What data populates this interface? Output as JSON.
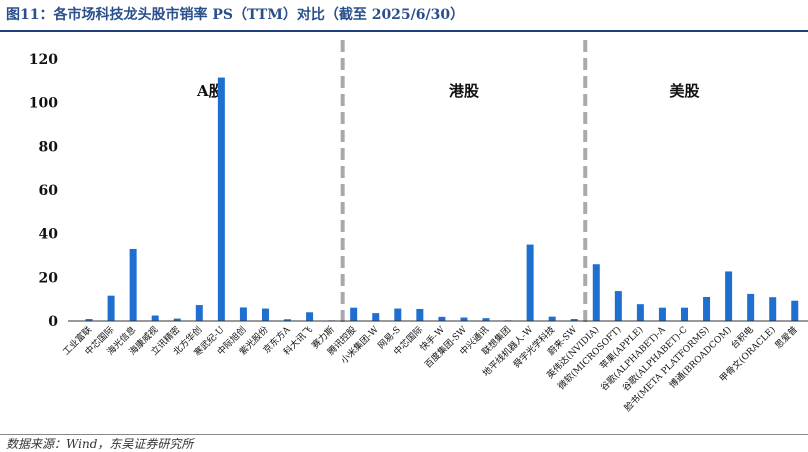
{
  "header": {
    "title": "图11：各市场科技龙头股市销率 PS（TTM）对比（截至 2025/6/30）"
  },
  "footer": {
    "source": "数据来源：Wind，东吴证券研究所"
  },
  "chart_data": {
    "type": "bar",
    "title": "图11：各市场科技龙头股市销率 PS（TTM）对比（截至 2025/6/30）",
    "xlabel": "",
    "ylabel": "",
    "ylim": [
      0,
      120
    ],
    "yticks": [
      0,
      20,
      40,
      60,
      80,
      100,
      120
    ],
    "grid": false,
    "bar_color": "#1f6fd1",
    "separator_color": "#a9a9a9",
    "groups": [
      {
        "name": "A股",
        "start": 0,
        "end": 11
      },
      {
        "name": "港股",
        "start": 12,
        "end": 22
      },
      {
        "name": "美股",
        "start": 23,
        "end": 31
      }
    ],
    "categories": [
      "工业富联",
      "中芯国际",
      "海光信息",
      "海康威视",
      "立讯精密",
      "北方华创",
      "寒武纪-U",
      "中际旭创",
      "紫光股份",
      "京东方A",
      "科大讯飞",
      "赛力斯",
      "腾讯控股",
      "小米集团-W",
      "网易-S",
      "中芯国际",
      "快手-W",
      "百度集团-SW",
      "中兴通讯",
      "联想集团",
      "地平线机器人-W",
      "舜宇光学科技",
      "蔚来-SW",
      "英伟达(NVIDIA)",
      "微软(MICROSOFT)",
      "苹果(APPLE)",
      "谷歌(ALPHABET)-A",
      "谷歌(ALPHABET)-C",
      "脸书(META PLATFORMS)",
      "博通(BROADCOM)",
      "台积电",
      "甲骨文(ORACLE)",
      "思爱普"
    ],
    "values": [
      0.9,
      11.6,
      33.0,
      2.5,
      1.1,
      7.3,
      111.5,
      6.2,
      5.7,
      0.8,
      4.0,
      0.3,
      6.1,
      3.6,
      5.7,
      5.5,
      1.9,
      1.6,
      1.3,
      0.3,
      35.0,
      2.0,
      0.9,
      26.0,
      13.7,
      7.7,
      6.1,
      6.1,
      11.0,
      22.7,
      12.4,
      10.9,
      9.3
    ]
  }
}
